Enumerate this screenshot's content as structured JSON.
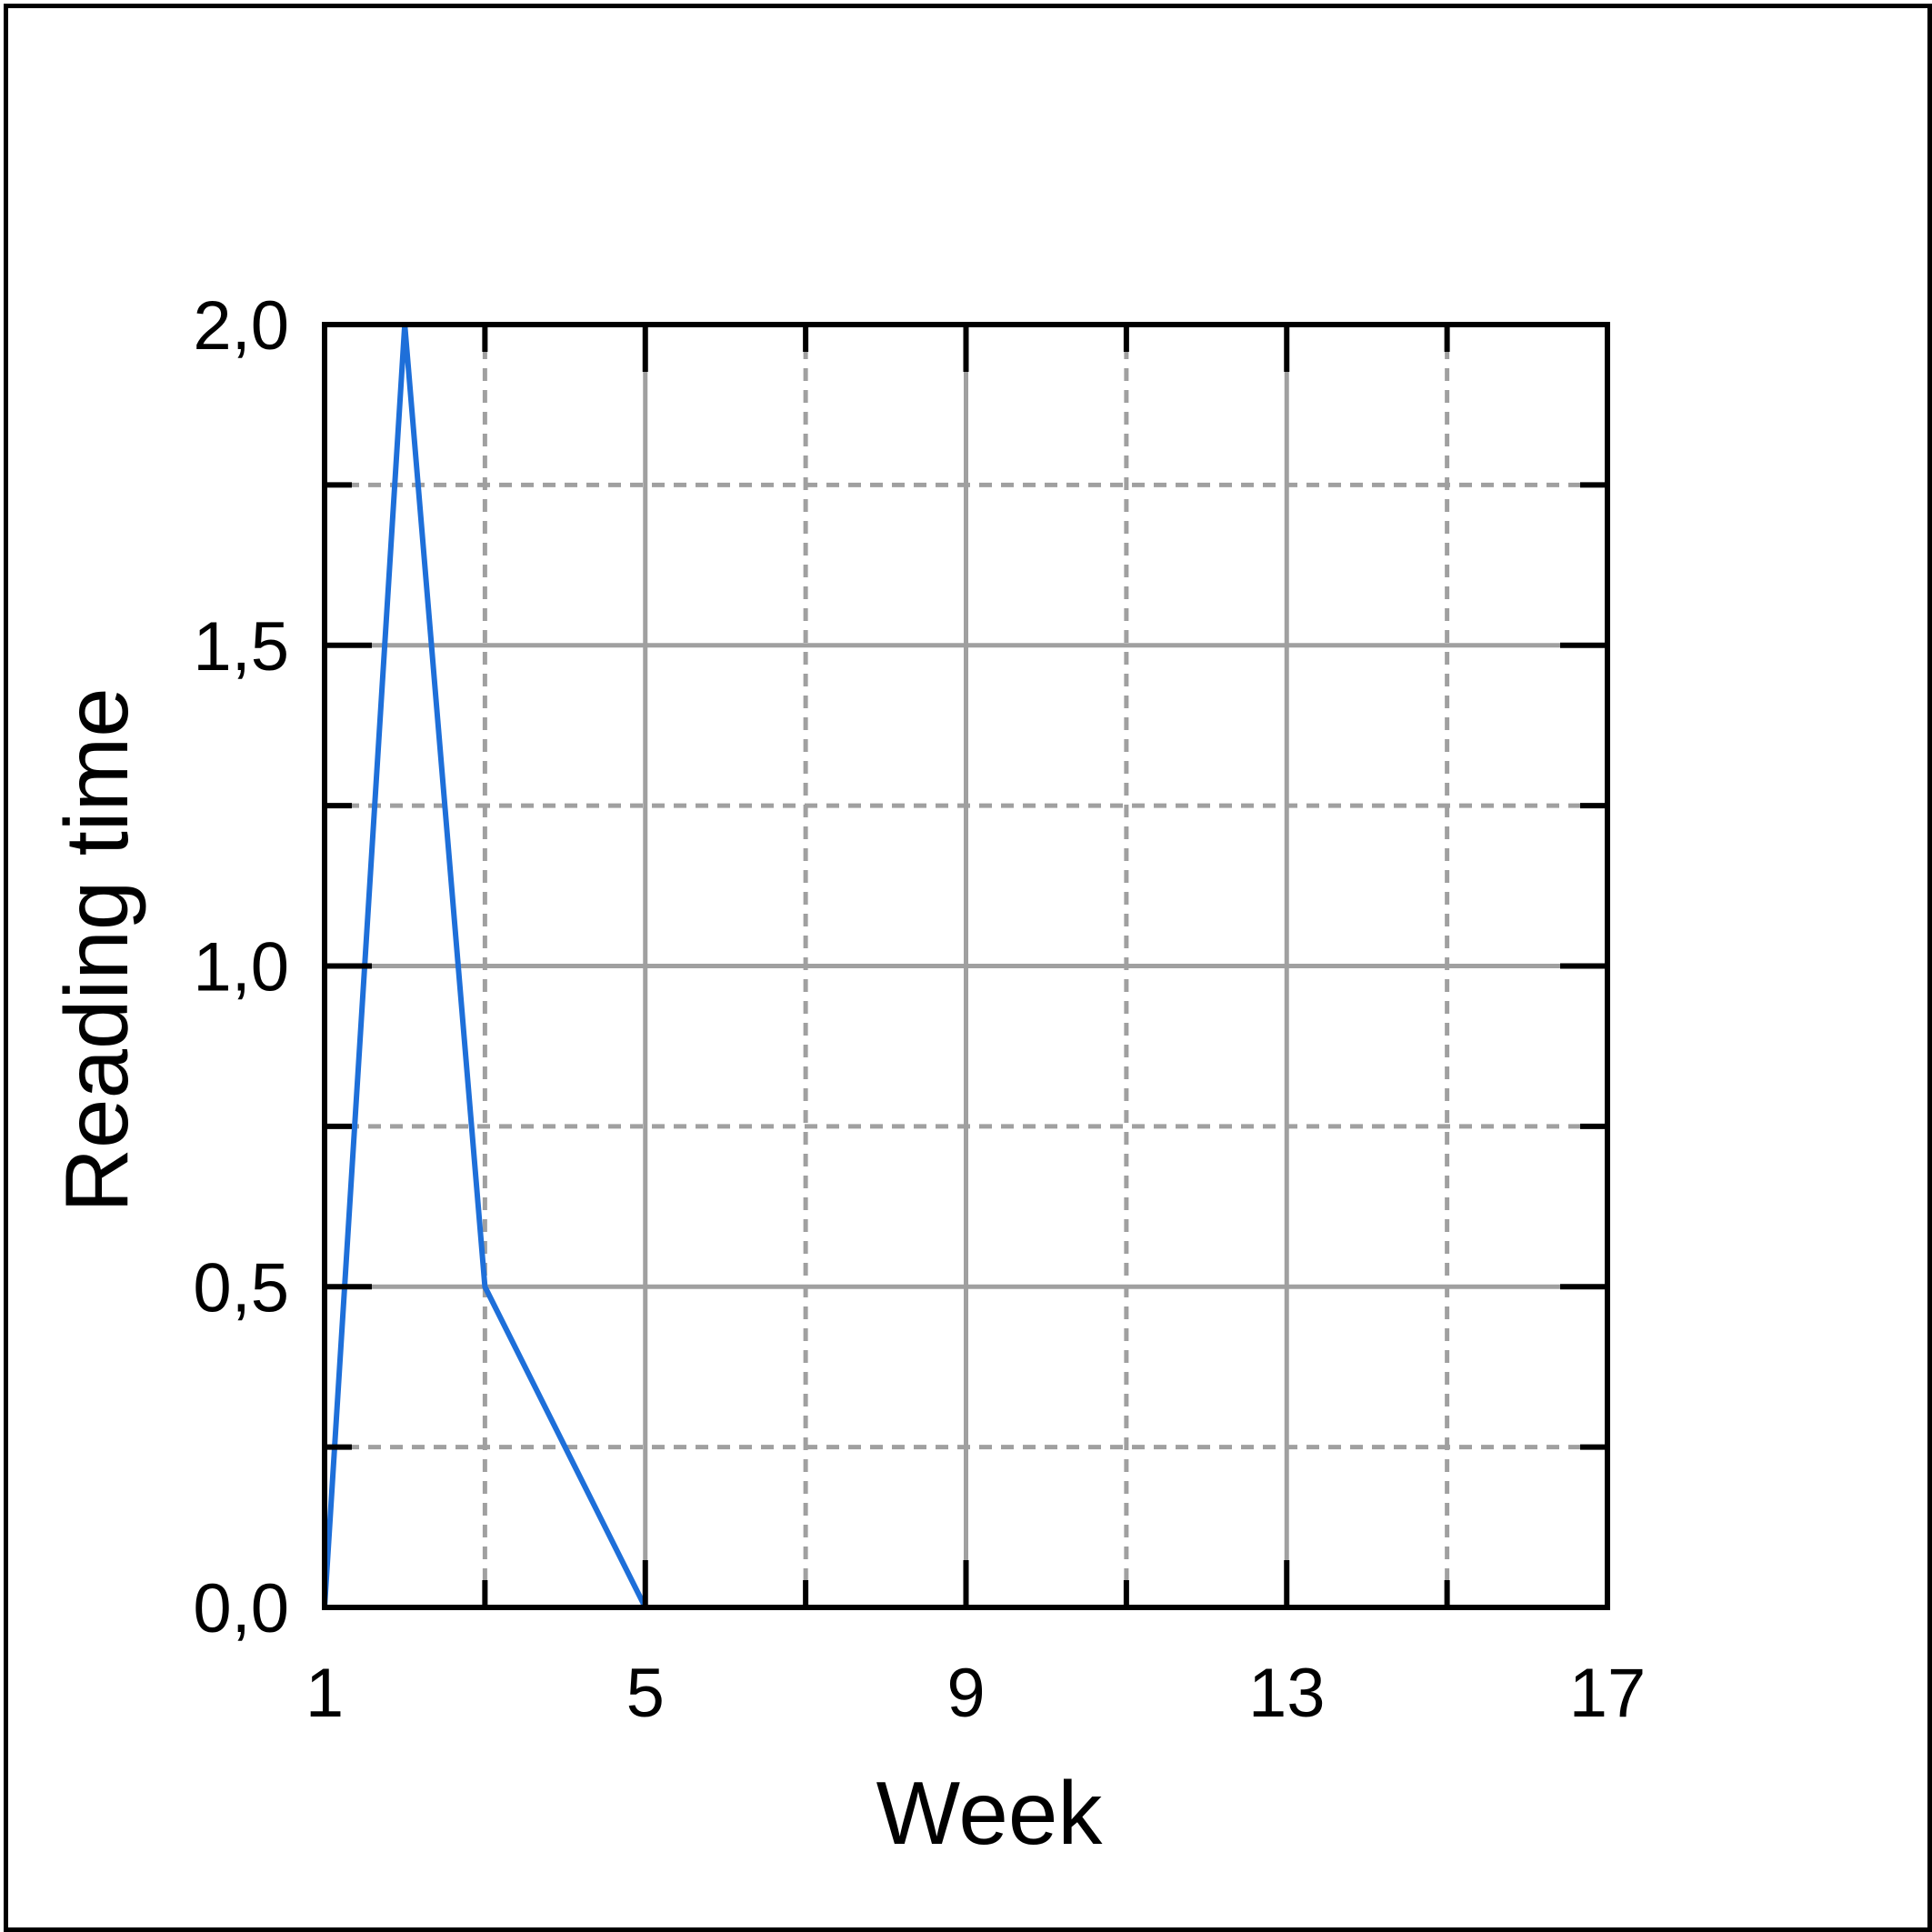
{
  "chart_data": {
    "type": "line",
    "title": "",
    "xlabel": "Week",
    "ylabel": "Reading time",
    "xlim": [
      1,
      17
    ],
    "ylim": [
      0,
      2
    ],
    "x_ticks": [
      1,
      5,
      9,
      13,
      17
    ],
    "x_tick_labels": [
      "1",
      "5",
      "9",
      "13",
      "17"
    ],
    "x_minor_ticks": [
      3,
      7,
      11,
      15
    ],
    "y_ticks": [
      0,
      0.5,
      1,
      1.5,
      2
    ],
    "y_tick_labels": [
      "0,0",
      "0,5",
      "1,0",
      "1,5",
      "2,0"
    ],
    "y_minor_ticks": [
      0.25,
      0.75,
      1.25,
      1.75
    ],
    "grid": true,
    "legend": "none",
    "series": [
      {
        "x": [
          1,
          2,
          3,
          5
        ],
        "y": [
          0,
          2,
          0.5,
          0
        ],
        "color": "#1e6fd9"
      }
    ],
    "colors": {
      "line": "#1e6fd9",
      "grid": "#a0a0a0",
      "axes": "#000000"
    }
  }
}
